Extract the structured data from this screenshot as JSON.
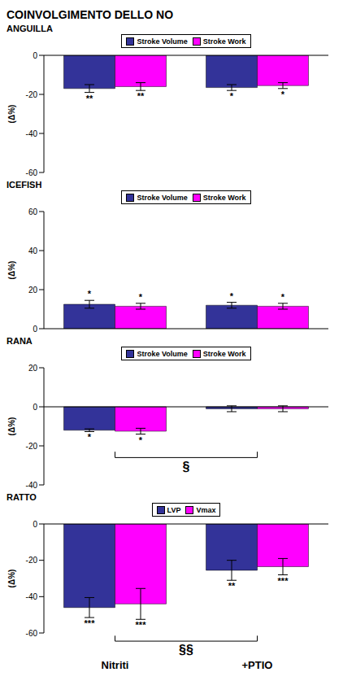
{
  "title": "COINVOLGIMENTO DELLO NO",
  "chart_data": [
    {
      "type": "bar",
      "title": "ANGUILLA",
      "categories": [
        null,
        null
      ],
      "tick_labels": "y",
      "y_label": "(Δ%)",
      "ylim": [
        -60,
        0
      ],
      "yticks": [
        -60,
        -40,
        -20,
        0
      ],
      "legend": "top",
      "series": [
        {
          "name": "Stroke Volume",
          "color": "#333399",
          "values": [
            -17,
            -16.5
          ],
          "errors": [
            2,
            1.5
          ],
          "annotations": [
            "**",
            "*"
          ]
        },
        {
          "name": "Stroke Work",
          "color": "#FF00FF",
          "values": [
            -16,
            -15.5
          ],
          "errors": [
            2,
            1.5
          ],
          "annotations": [
            "**",
            "*"
          ]
        }
      ]
    },
    {
      "type": "bar",
      "title": "ICEFISH",
      "categories": [
        null,
        null
      ],
      "tick_labels": "y",
      "y_label": "(Δ%)",
      "ylim": [
        0,
        60
      ],
      "yticks": [
        0,
        20,
        40,
        60
      ],
      "legend": "top",
      "series": [
        {
          "name": "Stroke Volume",
          "color": "#333399",
          "values": [
            12.5,
            12
          ],
          "errors": [
            2,
            1.5
          ],
          "annotations": [
            "*",
            "*"
          ]
        },
        {
          "name": "Stroke Work",
          "color": "#FF00FF",
          "values": [
            11.5,
            11.5
          ],
          "errors": [
            1.5,
            1.5
          ],
          "annotations": [
            "*",
            "*"
          ]
        }
      ]
    },
    {
      "type": "bar",
      "title": "RANA",
      "categories": [
        null,
        null
      ],
      "tick_labels": "y",
      "y_label": "(Δ%)",
      "ylim": [
        -40,
        20
      ],
      "yticks": [
        -40,
        -20,
        0,
        20
      ],
      "legend": "top",
      "comparison_label": "§",
      "series": [
        {
          "name": "Stroke Volume",
          "color": "#333399",
          "values": [
            -12,
            -1
          ],
          "errors": [
            0.7,
            1.5
          ],
          "annotations": [
            "*",
            null
          ]
        },
        {
          "name": "Stroke Work",
          "color": "#FF00FF",
          "values": [
            -12.5,
            -1
          ],
          "errors": [
            1.5,
            1.5
          ],
          "annotations": [
            "*",
            null
          ]
        }
      ]
    },
    {
      "type": "bar",
      "title": "RATTO",
      "categories": [
        "Nitriti",
        "+PTIO"
      ],
      "y_label": "(Δ%)",
      "ylim": [
        -60,
        0
      ],
      "yticks": [
        -60,
        -40,
        -20,
        0
      ],
      "legend": "top",
      "comparison_label": "§§",
      "series": [
        {
          "name": "LVP",
          "color": "#333399",
          "values": [
            -46,
            -25.5
          ],
          "errors": [
            5.5,
            5.5
          ],
          "annotations": [
            "***",
            "**"
          ]
        },
        {
          "name": "Vmax",
          "color": "#FF00FF",
          "values": [
            -44,
            -23.5
          ],
          "errors": [
            8.5,
            4.5
          ],
          "annotations": [
            "***",
            "***"
          ]
        }
      ]
    }
  ]
}
